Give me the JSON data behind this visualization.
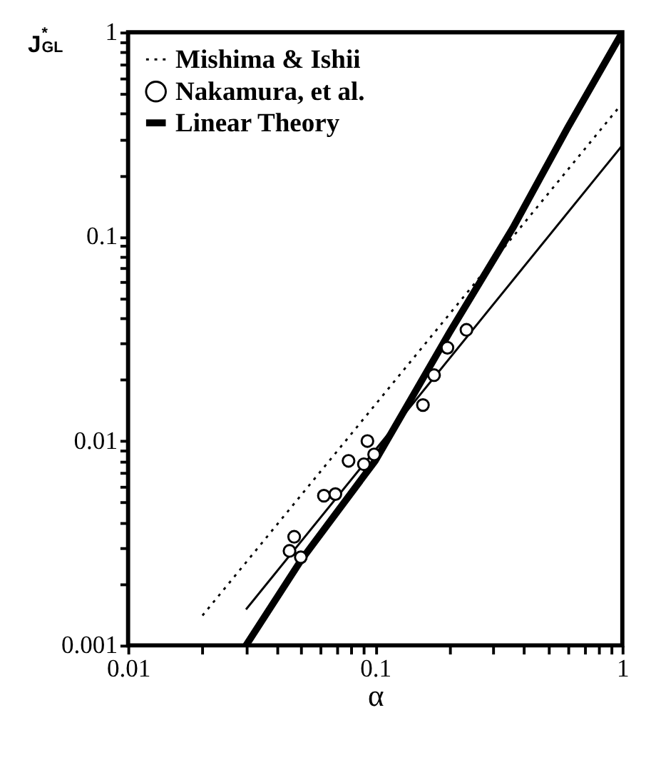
{
  "chart_data": {
    "type": "line",
    "xlabel": "α",
    "ylabel": "J$^{*}$$_{GL}$",
    "log": "xy",
    "xlim": [
      0.01,
      1
    ],
    "ylim": [
      0.001,
      1
    ],
    "xticks": [
      0.01,
      {
        "value": 0.02,
        "label": null
      },
      {
        "value": 0.03,
        "label": null
      },
      {
        "value": 0.04,
        "label": null
      },
      {
        "value": 0.05,
        "label": null
      },
      {
        "value": 0.06,
        "label": null
      },
      {
        "value": 0.07,
        "label": null
      },
      {
        "value": 0.08,
        "label": null
      },
      {
        "value": 0.09,
        "label": null
      },
      0.1,
      {
        "value": 0.2,
        "label": null
      },
      {
        "value": 0.3,
        "label": null
      },
      {
        "value": 0.4,
        "label": null
      },
      {
        "value": 0.5,
        "label": null
      },
      {
        "value": 0.6,
        "label": null
      },
      {
        "value": 0.7,
        "label": null
      },
      {
        "value": 0.8,
        "label": null
      },
      {
        "value": 0.9,
        "label": null
      },
      1
    ],
    "yticks": [
      0.001,
      {
        "value": 0.002,
        "label": null
      },
      {
        "value": 0.003,
        "label": null
      },
      {
        "value": 0.004,
        "label": null
      },
      {
        "value": 0.005,
        "label": null
      },
      {
        "value": 0.006,
        "label": null
      },
      {
        "value": 0.007,
        "label": null
      },
      {
        "value": 0.008,
        "label": null
      },
      {
        "value": 0.009,
        "label": null
      },
      0.01,
      {
        "value": 0.02,
        "label": null
      },
      {
        "value": 0.03,
        "label": null
      },
      {
        "value": 0.04,
        "label": null
      },
      {
        "value": 0.05,
        "label": null
      },
      {
        "value": 0.06,
        "label": null
      },
      {
        "value": 0.07,
        "label": null
      },
      {
        "value": 0.08,
        "label": null
      },
      {
        "value": 0.09,
        "label": null
      },
      0.1,
      {
        "value": 0.2,
        "label": null
      },
      {
        "value": 0.3,
        "label": null
      },
      {
        "value": 0.4,
        "label": null
      },
      {
        "value": 0.5,
        "label": null
      },
      {
        "value": 0.6,
        "label": null
      },
      {
        "value": 0.7,
        "label": null
      },
      {
        "value": 0.8,
        "label": null
      },
      {
        "value": 0.9,
        "label": null
      },
      1
    ],
    "grid": false,
    "legend": "top left",
    "series": [
      {
        "name": "Mishima & Ishii",
        "type": "line",
        "line_style": "dotted",
        "marker": "none",
        "color": "#000000",
        "x": [
          0.02,
          1
        ],
        "values": [
          0.0014,
          0.45
        ]
      },
      {
        "name": "Nakamura, et al.",
        "type": "scatter",
        "marker": "circle",
        "color": "#000000",
        "x": [
          0.045,
          0.047,
          0.05,
          0.062,
          0.069,
          0.078,
          0.09,
          0.093,
          0.099,
          0.156,
          0.173,
          0.196,
          0.234
        ],
        "values": [
          0.0029,
          0.0034,
          0.0027,
          0.0054,
          0.0055,
          0.008,
          0.0077,
          0.01,
          0.0086,
          0.015,
          0.021,
          0.0286,
          0.035
        ]
      },
      {
        "type": "line",
        "line_style": "solid",
        "marker": "none",
        "color": "#000000",
        "x": [
          0.03,
          1
        ],
        "values": [
          0.0015,
          0.28
        ]
      },
      {
        "name": "Linear Theory",
        "type": "line",
        "line_style": "solid",
        "marker": "none",
        "color": "#000000",
        "x": [
          0.03,
          0.05,
          0.1,
          0.2,
          0.36,
          0.6,
          1
        ],
        "values": [
          0.001,
          0.0026,
          0.008,
          0.034,
          0.11,
          0.34,
          1
        ]
      }
    ]
  }
}
